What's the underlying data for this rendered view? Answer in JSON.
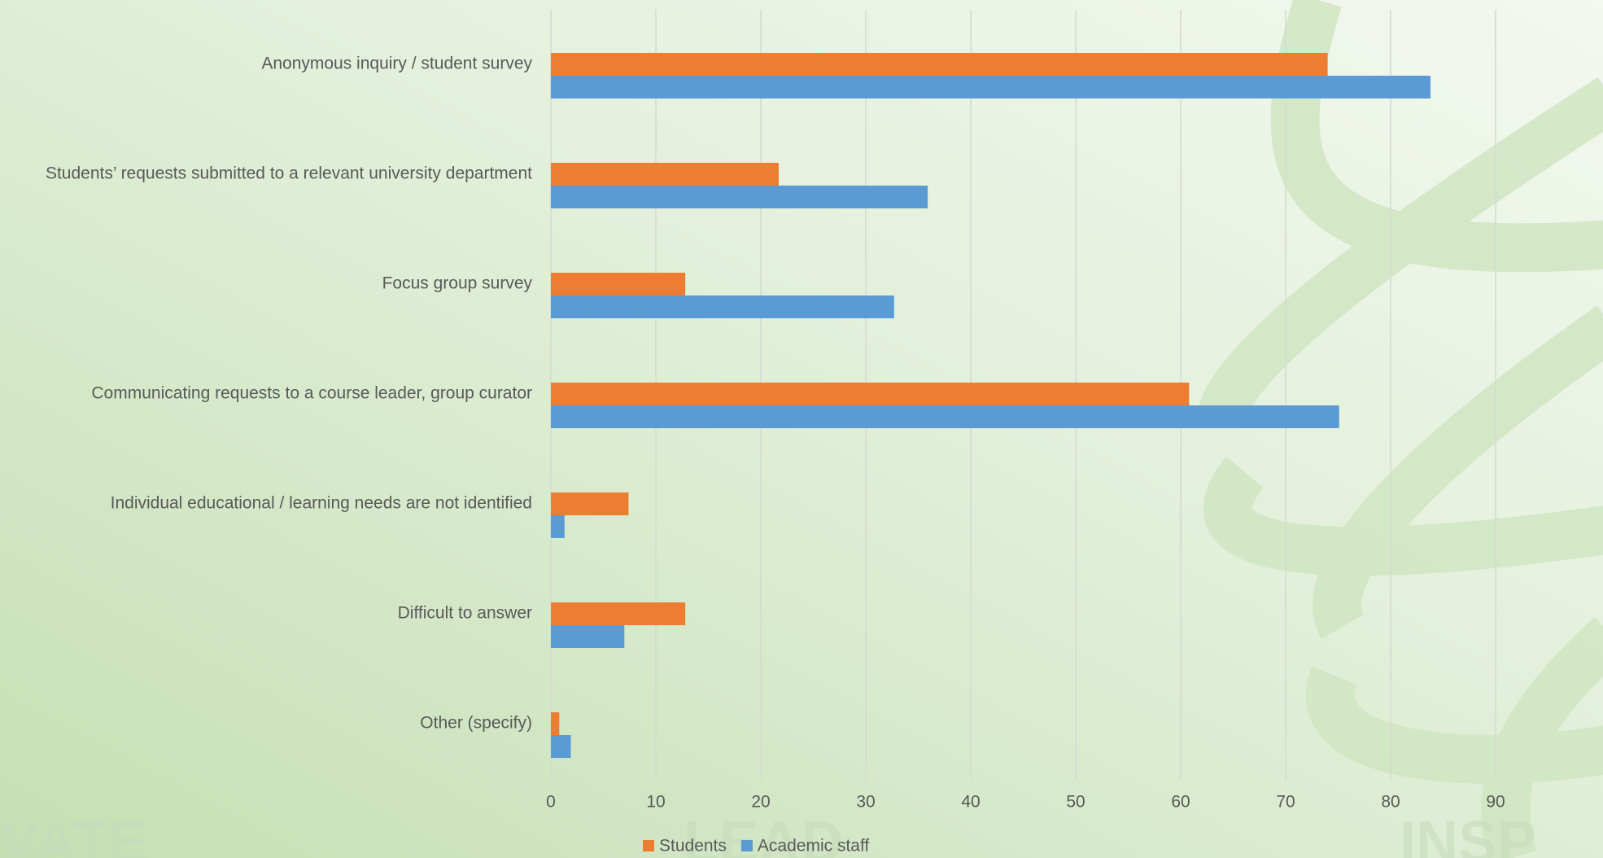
{
  "chart_data": {
    "type": "bar",
    "orientation": "horizontal",
    "categories": [
      "Anonymous inquiry / student survey",
      "Students’ requests submitted to a relevant university department",
      "Focus group survey",
      "Communicating requests to a course leader, group curator",
      "Individual educational / learning needs are not identified",
      "Difficult to answer",
      "Other (specify)"
    ],
    "series": [
      {
        "name": "Students",
        "color": "#ed7d31",
        "values": [
          74.0,
          21.7,
          12.8,
          60.8,
          7.4,
          12.8,
          0.8
        ]
      },
      {
        "name": "Academic staff",
        "color": "#5b9bd5",
        "values": [
          83.8,
          35.9,
          32.7,
          75.1,
          1.3,
          7.0,
          1.9
        ]
      }
    ],
    "xlim": [
      0,
      90
    ],
    "xticks": [
      0,
      10,
      20,
      30,
      40,
      50,
      60,
      70,
      80,
      90
    ],
    "grid": true,
    "legend": "bottom"
  },
  "background_text": [
    "VATE",
    "LEAD",
    "INSP"
  ]
}
